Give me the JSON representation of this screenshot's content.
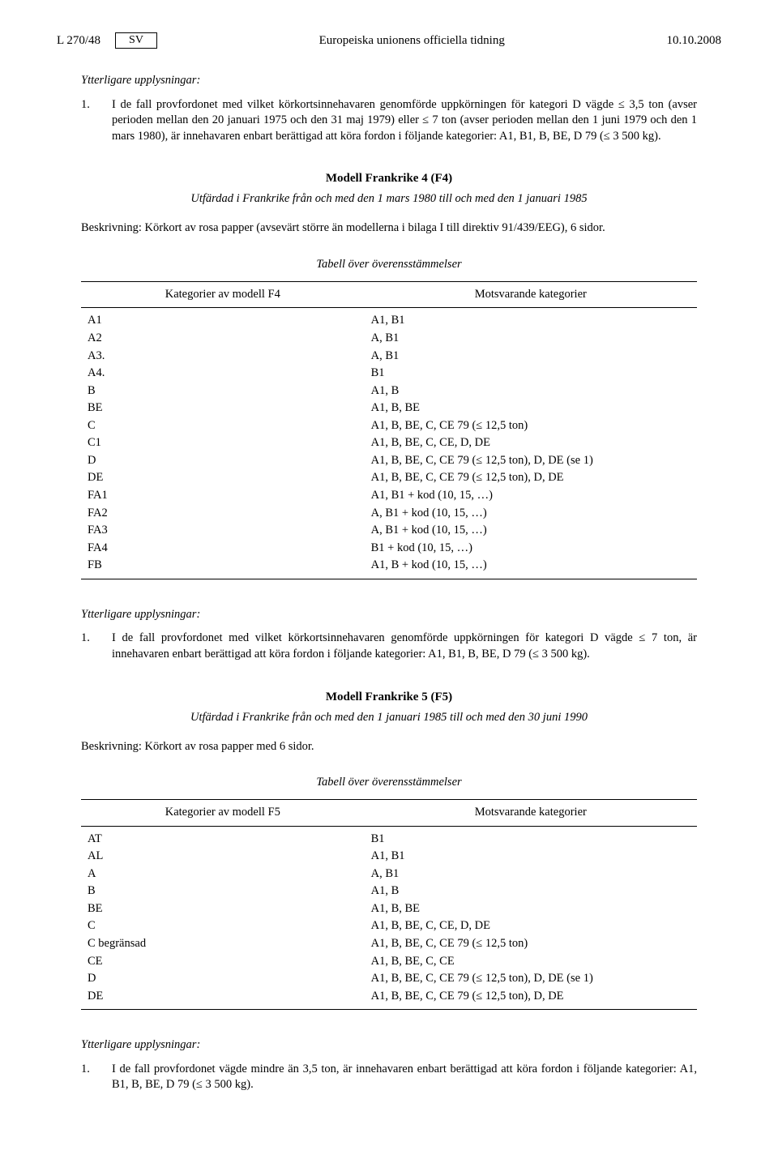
{
  "header": {
    "page_ref": "L 270/48",
    "lang": "SV",
    "journal": "Europeiska unionens officiella tidning",
    "date": "10.10.2008"
  },
  "block1": {
    "heading": "Ytterligare upplysningar:",
    "item_num": "1.",
    "item_text": "I de fall provfordonet med vilket körkortsinnehavaren genomförde uppkörningen för kategori D vägde ≤ 3,5 ton (avser perioden mellan den 20 januari 1975 och den 31 maj 1979) eller ≤ 7 ton (avser perioden mellan den 1 juni 1979 och den 1 mars 1980), är innehavaren enbart berättigad att köra fordon i följande kategorier: A1, B1, B, BE, D 79 (≤ 3 500 kg)."
  },
  "model_f4": {
    "title": "Modell Frankrike 4 (F4)",
    "issued": "Utfärdad i Frankrike från och med den 1 mars 1980 till och med den 1 januari 1985",
    "description": "Beskrivning: Körkort av rosa papper (avsevärt större än modellerna i bilaga I till direktiv 91/439/EEG), 6 sidor.",
    "table_caption": "Tabell över överensstämmelser",
    "col_left": "Kategorier av modell F4",
    "col_right": "Motsvarande kategorier",
    "rows": [
      {
        "l": "A1",
        "r": "A1, B1"
      },
      {
        "l": "A2",
        "r": "A, B1"
      },
      {
        "l": "A3.",
        "r": "A, B1"
      },
      {
        "l": "A4.",
        "r": "B1"
      },
      {
        "l": "B",
        "r": "A1, B"
      },
      {
        "l": "BE",
        "r": "A1, B, BE"
      },
      {
        "l": "C",
        "r": "A1, B, BE, C, CE 79 (≤ 12,5 ton)"
      },
      {
        "l": "C1",
        "r": "A1, B, BE, C, CE, D, DE"
      },
      {
        "l": "D",
        "r": "A1, B, BE, C, CE 79 (≤ 12,5 ton), D, DE (se 1)"
      },
      {
        "l": "DE",
        "r": "A1, B, BE, C, CE 79 (≤ 12,5 ton), D, DE"
      },
      {
        "l": "FA1",
        "r": "A1, B1 + kod (10, 15, …)"
      },
      {
        "l": "FA2",
        "r": "A, B1 + kod (10, 15, …)"
      },
      {
        "l": "FA3",
        "r": "A, B1 + kod (10, 15, …)"
      },
      {
        "l": "FA4",
        "r": "B1 + kod (10, 15, …)"
      },
      {
        "l": "FB",
        "r": "A1, B + kod (10, 15, …)"
      }
    ]
  },
  "block2": {
    "heading": "Ytterligare upplysningar:",
    "item_num": "1.",
    "item_text": "I de fall provfordonet med vilket körkortsinnehavaren genomförde uppkörningen för kategori D vägde ≤ 7 ton, är innehavaren enbart berättigad att köra fordon i följande kategorier: A1, B1, B, BE, D 79 (≤ 3 500 kg)."
  },
  "model_f5": {
    "title": "Modell Frankrike 5 (F5)",
    "issued": "Utfärdad i Frankrike från och med den 1 januari 1985 till och med den 30 juni 1990",
    "description": "Beskrivning: Körkort av rosa papper med 6 sidor.",
    "table_caption": "Tabell över överensstämmelser",
    "col_left": "Kategorier av modell F5",
    "col_right": "Motsvarande kategorier",
    "rows": [
      {
        "l": "AT",
        "r": "B1"
      },
      {
        "l": "AL",
        "r": "A1, B1"
      },
      {
        "l": "A",
        "r": "A, B1"
      },
      {
        "l": "B",
        "r": "A1, B"
      },
      {
        "l": "BE",
        "r": "A1, B, BE"
      },
      {
        "l": "C",
        "r": "A1, B, BE, C, CE, D, DE"
      },
      {
        "l": "C begränsad",
        "r": "A1, B, BE, C, CE 79 (≤ 12,5 ton)"
      },
      {
        "l": "CE",
        "r": "A1, B, BE, C, CE"
      },
      {
        "l": "D",
        "r": "A1, B, BE, C, CE 79 (≤ 12,5 ton), D, DE (se 1)"
      },
      {
        "l": "DE",
        "r": "A1, B, BE, C, CE 79 (≤ 12,5 ton), D, DE"
      }
    ]
  },
  "block3": {
    "heading": "Ytterligare upplysningar:",
    "item_num": "1.",
    "item_text": "I de fall provfordonet vägde mindre än 3,5 ton, är innehavaren enbart berättigad att köra fordon i följande kategorier: A1, B1, B, BE, D 79 (≤ 3 500 kg)."
  }
}
